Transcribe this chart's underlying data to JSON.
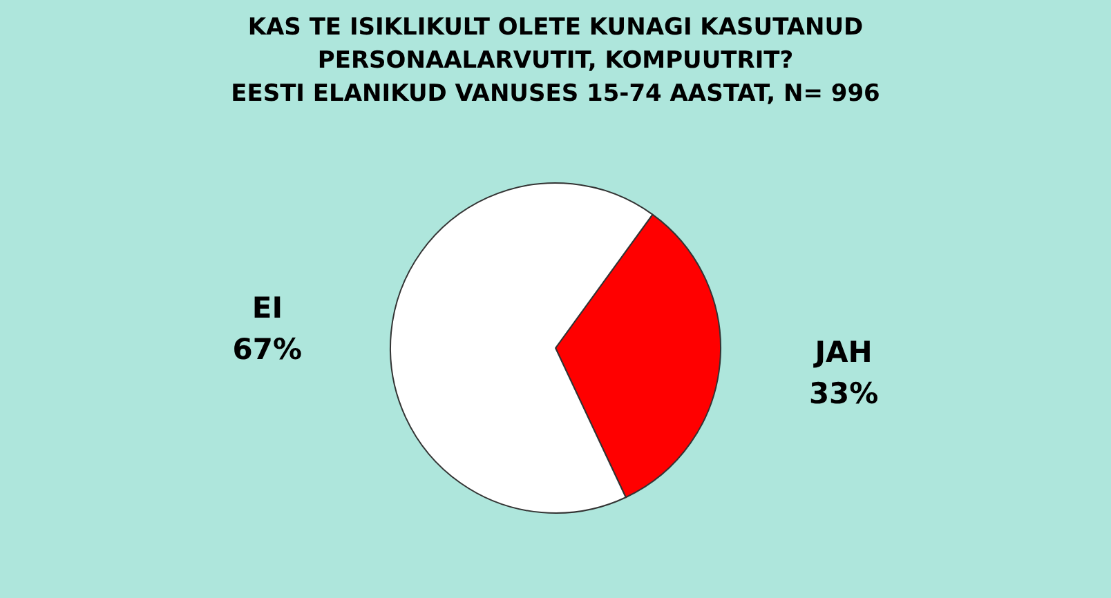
{
  "chart_data": {
    "type": "pie",
    "title": "KAS TE ISIKLIKULT OLETE KUNAGI KASUTANUD PERSONAALARVUTIT, KOMPUUTRIT?",
    "subtitle": "EESTI ELANIKUD VANUSES 15-74 AASTAT, N= 996",
    "categories": [
      "JAH",
      "EI"
    ],
    "values": [
      33,
      67
    ],
    "value_labels": [
      "33%",
      "67%"
    ],
    "colors": [
      "#ff0000",
      "#ffffff"
    ],
    "legend": false
  }
}
